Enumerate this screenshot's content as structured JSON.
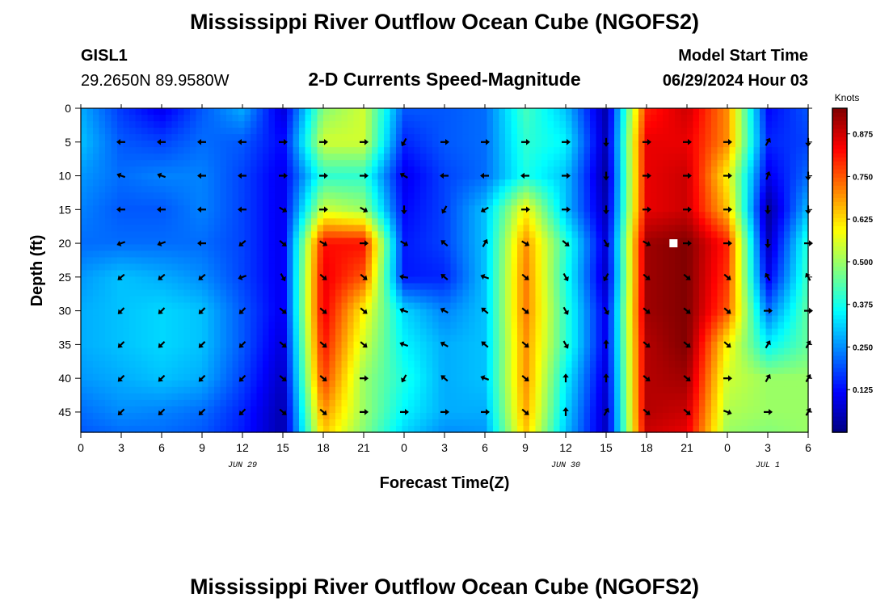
{
  "page": {
    "title_top": "Mississippi River Outflow Ocean Cube (NGOFS2)",
    "title_bottom": "Mississippi River Outflow Ocean Cube (NGOFS2)",
    "station_id": "GISL1",
    "station_coords": "29.2650N  89.9580W",
    "subtitle": "2-D Currents Speed-Magnitude",
    "model_start_label": "Model Start Time",
    "model_start_value": "06/29/2024 Hour 03"
  },
  "chart_data": {
    "type": "heatmap",
    "title": "2-D Currents Speed-Magnitude",
    "xlabel": "Forecast Time(Z)",
    "ylabel": "Depth (ft)",
    "x_hours_range": [
      0,
      54
    ],
    "x_tick_hours": [
      0,
      3,
      6,
      9,
      12,
      15,
      18,
      21,
      24,
      27,
      30,
      33,
      36,
      39,
      42,
      45,
      48,
      51,
      54
    ],
    "x_tick_labels": [
      "0",
      "3",
      "6",
      "9",
      "12",
      "15",
      "18",
      "21",
      "0",
      "3",
      "6",
      "9",
      "12",
      "15",
      "18",
      "21",
      "0",
      "3",
      "6"
    ],
    "date_labels": [
      {
        "text": "JUN 29",
        "hour": 12
      },
      {
        "text": "JUN 30",
        "hour": 36
      },
      {
        "text": "JUL 1",
        "hour": 51
      }
    ],
    "y_ticks": [
      0,
      5,
      10,
      15,
      20,
      25,
      30,
      35,
      40,
      45
    ],
    "y_tick_labels": [
      "0",
      "5",
      "10",
      "15",
      "20",
      "25",
      "30",
      "35",
      "40",
      "45"
    ],
    "y_range": [
      0,
      48
    ],
    "y_inverted": true,
    "colorbar": {
      "title": "Knots",
      "range": [
        0,
        0.95
      ],
      "ticks": [
        0.125,
        0.25,
        0.375,
        0.5,
        0.625,
        0.75,
        0.875
      ],
      "tick_labels": [
        "0.125",
        "0.250",
        "0.375",
        "0.500",
        "0.625",
        "0.750",
        "0.875"
      ],
      "colormap": "jet"
    },
    "hours": [
      0,
      3,
      6,
      9,
      12,
      15,
      18,
      21,
      24,
      27,
      30,
      33,
      36,
      39,
      42,
      45,
      48,
      51,
      54
    ],
    "depths": [
      0,
      5,
      10,
      15,
      20,
      25,
      30,
      35,
      40,
      45,
      48
    ],
    "speed_knots": [
      [
        0.28,
        0.17,
        0.1,
        0.2,
        0.28,
        0.08,
        0.48,
        0.55,
        0.2,
        0.2,
        0.22,
        0.42,
        0.3,
        0.04,
        0.8,
        0.88,
        0.7,
        0.12,
        0.2
      ],
      [
        0.3,
        0.2,
        0.18,
        0.22,
        0.2,
        0.12,
        0.55,
        0.55,
        0.15,
        0.2,
        0.22,
        0.4,
        0.35,
        0.05,
        0.85,
        0.85,
        0.7,
        0.15,
        0.18
      ],
      [
        0.26,
        0.22,
        0.24,
        0.24,
        0.18,
        0.1,
        0.4,
        0.4,
        0.1,
        0.18,
        0.22,
        0.38,
        0.3,
        0.03,
        0.85,
        0.88,
        0.6,
        0.1,
        0.22
      ],
      [
        0.24,
        0.2,
        0.2,
        0.24,
        0.18,
        0.1,
        0.55,
        0.5,
        0.12,
        0.18,
        0.3,
        0.6,
        0.3,
        0.05,
        0.85,
        0.88,
        0.65,
        0.02,
        0.3
      ],
      [
        0.22,
        0.22,
        0.22,
        0.22,
        0.18,
        0.1,
        0.82,
        0.82,
        0.14,
        0.18,
        0.3,
        0.7,
        0.4,
        0.08,
        0.92,
        0.95,
        0.8,
        0.05,
        0.4
      ],
      [
        0.26,
        0.3,
        0.28,
        0.25,
        0.18,
        0.1,
        0.85,
        0.75,
        0.14,
        0.15,
        0.3,
        0.72,
        0.38,
        0.06,
        0.92,
        0.95,
        0.78,
        0.1,
        0.42
      ],
      [
        0.28,
        0.3,
        0.32,
        0.3,
        0.2,
        0.1,
        0.85,
        0.6,
        0.32,
        0.24,
        0.3,
        0.72,
        0.4,
        0.1,
        0.92,
        0.95,
        0.75,
        0.22,
        0.45
      ],
      [
        0.28,
        0.3,
        0.32,
        0.3,
        0.2,
        0.08,
        0.82,
        0.55,
        0.35,
        0.28,
        0.3,
        0.7,
        0.4,
        0.1,
        0.9,
        0.95,
        0.6,
        0.35,
        0.45
      ],
      [
        0.26,
        0.28,
        0.3,
        0.28,
        0.18,
        0.06,
        0.78,
        0.5,
        0.38,
        0.28,
        0.3,
        0.7,
        0.35,
        0.08,
        0.9,
        0.92,
        0.55,
        0.5,
        0.5
      ],
      [
        0.22,
        0.25,
        0.24,
        0.22,
        0.15,
        0.04,
        0.7,
        0.5,
        0.35,
        0.28,
        0.28,
        0.68,
        0.32,
        0.06,
        0.9,
        0.88,
        0.52,
        0.5,
        0.5
      ],
      [
        0.2,
        0.22,
        0.22,
        0.2,
        0.14,
        0.04,
        0.65,
        0.48,
        0.32,
        0.25,
        0.26,
        0.65,
        0.3,
        0.06,
        0.88,
        0.85,
        0.5,
        0.48,
        0.5
      ]
    ],
    "vector_depths": [
      5,
      10,
      15,
      20,
      25,
      30,
      35,
      40,
      45
    ],
    "vector_hours": [
      3,
      6,
      9,
      12,
      15,
      18,
      21,
      24,
      27,
      30,
      33,
      36,
      39,
      42,
      45,
      48,
      51,
      54
    ],
    "vector_direction_deg": [
      [
        180,
        180,
        180,
        180,
        0,
        0,
        0,
        120,
        0,
        0,
        0,
        0,
        90,
        0,
        0,
        0,
        300,
        90
      ],
      [
        200,
        200,
        180,
        180,
        0,
        0,
        0,
        210,
        180,
        180,
        180,
        0,
        90,
        0,
        0,
        0,
        290,
        90
      ],
      [
        180,
        180,
        180,
        180,
        30,
        0,
        30,
        90,
        120,
        150,
        0,
        0,
        90,
        0,
        0,
        0,
        90,
        90
      ],
      [
        160,
        160,
        180,
        140,
        40,
        30,
        0,
        30,
        220,
        300,
        30,
        40,
        60,
        30,
        0,
        0,
        90,
        0
      ],
      [
        140,
        140,
        140,
        160,
        60,
        40,
        40,
        190,
        220,
        200,
        40,
        60,
        120,
        40,
        40,
        40,
        240,
        240
      ],
      [
        135,
        135,
        135,
        135,
        40,
        40,
        40,
        200,
        210,
        220,
        40,
        60,
        60,
        40,
        40,
        40,
        0,
        0
      ],
      [
        135,
        135,
        135,
        135,
        40,
        40,
        40,
        200,
        210,
        220,
        40,
        60,
        270,
        40,
        40,
        40,
        300,
        300
      ],
      [
        135,
        135,
        135,
        135,
        40,
        40,
        0,
        120,
        220,
        200,
        40,
        270,
        270,
        40,
        40,
        0,
        300,
        300
      ],
      [
        135,
        135,
        135,
        135,
        40,
        40,
        0,
        0,
        0,
        0,
        40,
        270,
        300,
        40,
        40,
        20,
        0,
        300
      ]
    ],
    "marker": {
      "hour": 44,
      "depth": 20
    }
  }
}
